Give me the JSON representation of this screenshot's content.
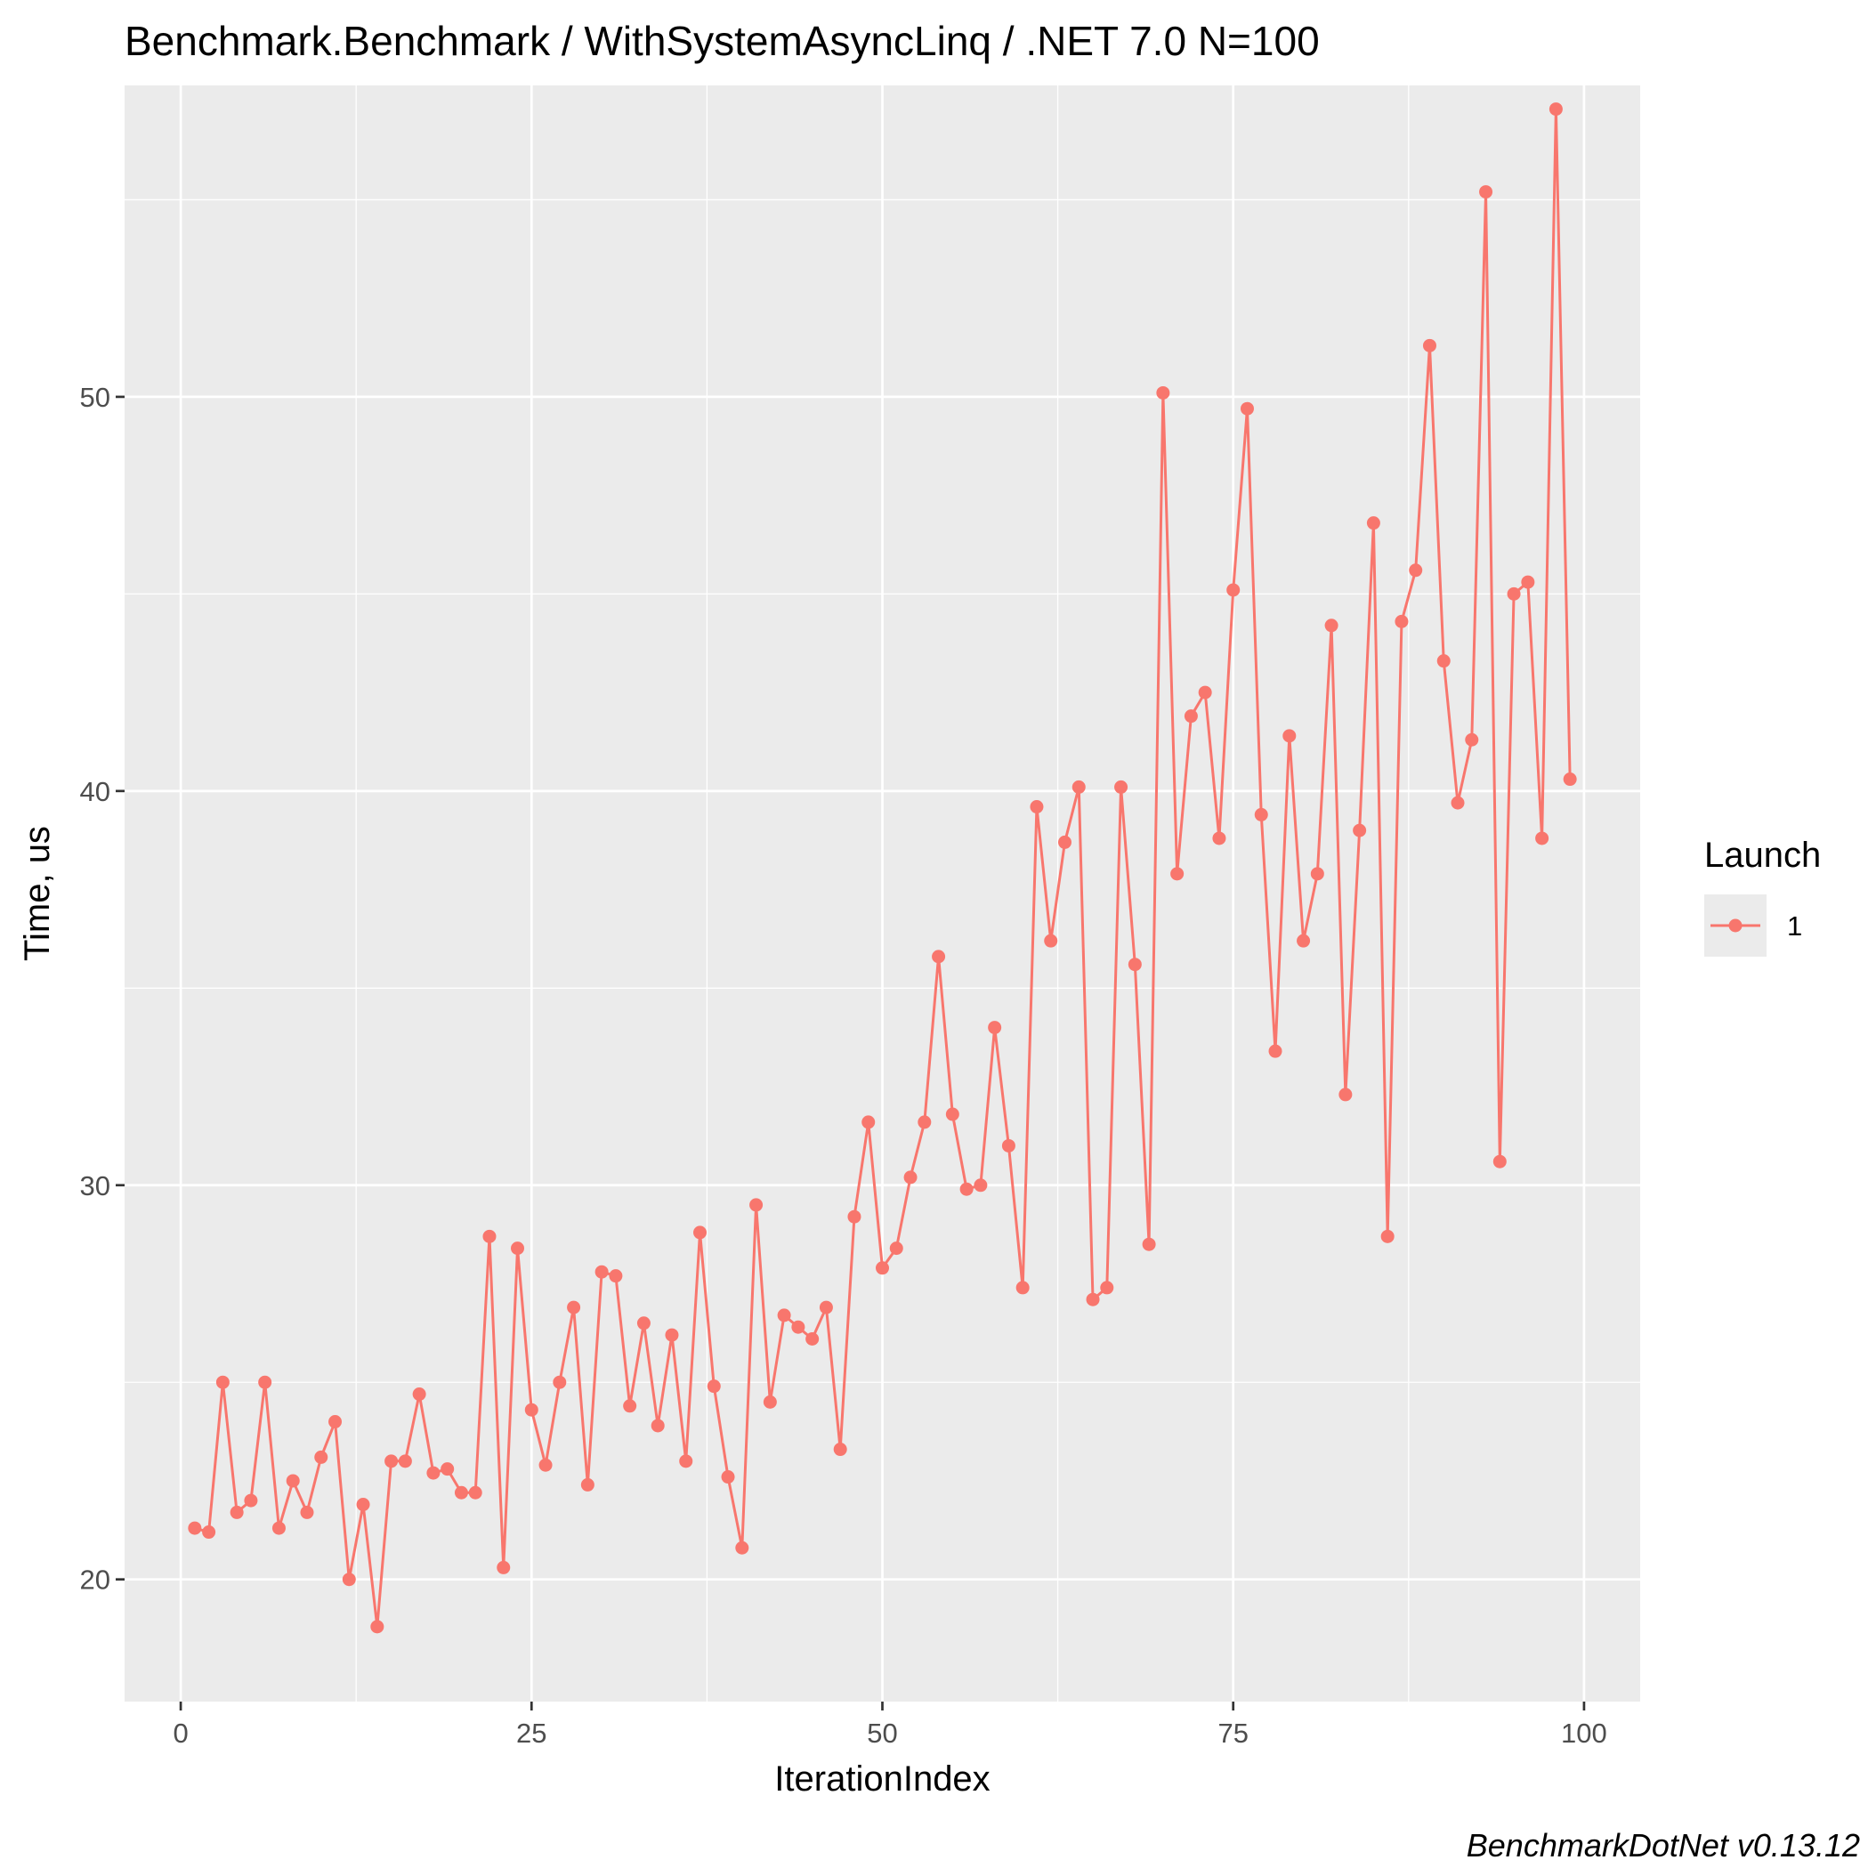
{
  "chart_data": {
    "type": "line",
    "title": "Benchmark.Benchmark / WithSystemAsyncLinq / .NET 7.0 N=100",
    "xlabel": "IterationIndex",
    "ylabel": "Time, us",
    "caption": "BenchmarkDotNet v0.13.12",
    "xlim": [
      -4,
      104
    ],
    "ylim": [
      16.9,
      57.9
    ],
    "x_ticks": [
      0,
      25,
      50,
      75,
      100
    ],
    "x_tick_labels": [
      "0",
      "25",
      "50",
      "75",
      "100"
    ],
    "y_ticks": [
      20,
      30,
      40,
      50
    ],
    "y_tick_labels": [
      "20",
      "30",
      "40",
      "50"
    ],
    "grid": true,
    "legend": {
      "title": "Launch",
      "position": "right",
      "entries": [
        "1"
      ]
    },
    "series": [
      {
        "name": "1",
        "color": "#F8766D",
        "x": [
          1,
          2,
          3,
          4,
          5,
          6,
          7,
          8,
          9,
          10,
          11,
          12,
          13,
          14,
          15,
          16,
          17,
          18,
          19,
          20,
          21,
          22,
          23,
          24,
          25,
          26,
          27,
          28,
          29,
          30,
          31,
          32,
          33,
          34,
          35,
          36,
          37,
          38,
          39,
          40,
          41,
          42,
          43,
          44,
          45,
          46,
          47,
          48,
          49,
          50,
          51,
          52,
          53,
          54,
          55,
          56,
          57,
          58,
          59,
          60,
          61,
          62,
          63,
          64,
          65,
          66,
          67,
          68,
          69,
          70,
          71,
          72,
          73,
          74,
          75,
          76,
          77,
          78,
          79,
          80,
          81,
          82,
          83,
          84,
          85,
          86,
          87,
          88,
          89,
          90,
          91,
          92,
          93,
          94,
          95,
          96,
          97,
          98,
          99
        ],
        "values": [
          21.3,
          21.2,
          25.0,
          21.7,
          22.0,
          25.0,
          21.3,
          22.5,
          21.7,
          23.1,
          24.0,
          20.0,
          21.9,
          18.8,
          23.0,
          23.0,
          24.7,
          22.7,
          22.8,
          22.2,
          22.2,
          28.7,
          20.3,
          28.4,
          24.3,
          22.9,
          25.0,
          26.9,
          22.4,
          27.8,
          27.7,
          24.4,
          26.5,
          23.9,
          26.2,
          23.0,
          28.8,
          24.9,
          22.6,
          20.8,
          29.5,
          24.5,
          26.7,
          26.4,
          26.1,
          26.9,
          23.3,
          29.2,
          31.6,
          27.9,
          28.4,
          30.2,
          31.6,
          35.8,
          31.8,
          29.9,
          30.0,
          34.0,
          31.0,
          27.4,
          39.6,
          36.2,
          38.7,
          40.1,
          27.1,
          27.4,
          40.1,
          35.6,
          28.5,
          50.1,
          37.9,
          41.9,
          42.5,
          38.8,
          45.1,
          49.7,
          39.4,
          33.4,
          41.4,
          36.2,
          37.9,
          44.2,
          32.3,
          39.0,
          46.8,
          28.7,
          44.3,
          45.6,
          51.3,
          43.3,
          39.7,
          41.3,
          55.2,
          30.6,
          45.0,
          45.3,
          38.8,
          57.3,
          40.3
        ]
      }
    ]
  }
}
